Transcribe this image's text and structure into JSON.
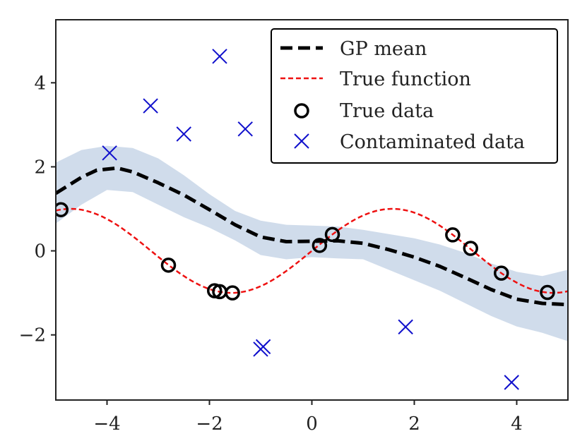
{
  "chart_data": {
    "type": "scatter",
    "title": "",
    "xlabel": "",
    "ylabel": "",
    "xlim": [
      -5,
      5
    ],
    "ylim": [
      -3.55,
      5.5
    ],
    "xticks": [
      -4,
      -2,
      0,
      2,
      4
    ],
    "yticks": [
      -2,
      0,
      2,
      4
    ],
    "xtick_labels": [
      "−4",
      "−2",
      "0",
      "2",
      "4"
    ],
    "ytick_labels": [
      "−2",
      "0",
      "2",
      "4"
    ],
    "legend": {
      "placement": "upper-right",
      "entries": [
        {
          "name": "GP mean",
          "style": "thick-dashed",
          "color": "#000000"
        },
        {
          "name": "True function",
          "style": "dashed",
          "color": "#ee1111"
        },
        {
          "name": "True data",
          "style": "circle-marker",
          "color": "#000000"
        },
        {
          "name": "Contaminated data",
          "style": "x-marker",
          "color": "#1010cc"
        }
      ]
    },
    "series": [
      {
        "name": "GP mean",
        "kind": "line",
        "color": "#000000",
        "x": [
          -5.0,
          -4.5,
          -4.2,
          -3.8,
          -3.5,
          -3.0,
          -2.5,
          -2.0,
          -1.5,
          -1.0,
          -0.5,
          0.0,
          0.5,
          1.0,
          1.5,
          2.0,
          2.5,
          3.0,
          3.5,
          4.0,
          4.5,
          5.0
        ],
        "y": [
          1.37,
          1.75,
          1.92,
          1.97,
          1.88,
          1.62,
          1.33,
          0.98,
          0.62,
          0.33,
          0.22,
          0.23,
          0.24,
          0.18,
          0.03,
          -0.15,
          -0.37,
          -0.64,
          -0.92,
          -1.15,
          -1.25,
          -1.28
        ]
      },
      {
        "name": "GP uncertainty band",
        "kind": "band",
        "color": "#b0c4de",
        "x": [
          -5.0,
          -4.5,
          -4.0,
          -3.5,
          -3.0,
          -2.5,
          -2.0,
          -1.5,
          -1.0,
          -0.5,
          0.0,
          0.5,
          1.0,
          1.5,
          2.0,
          2.5,
          3.0,
          3.5,
          4.0,
          4.5,
          5.0
        ],
        "upper": [
          2.1,
          2.4,
          2.5,
          2.45,
          2.2,
          1.8,
          1.35,
          0.95,
          0.72,
          0.62,
          0.6,
          0.58,
          0.5,
          0.4,
          0.3,
          0.15,
          -0.05,
          -0.3,
          -0.5,
          -0.6,
          -0.45
        ],
        "lower": [
          0.65,
          1.1,
          1.45,
          1.4,
          1.1,
          0.8,
          0.55,
          0.25,
          -0.1,
          -0.2,
          -0.15,
          -0.18,
          -0.2,
          -0.45,
          -0.7,
          -0.95,
          -1.25,
          -1.55,
          -1.8,
          -1.95,
          -2.15
        ]
      },
      {
        "name": "True function",
        "kind": "line",
        "color": "#ee1111",
        "function": "sin(x)",
        "x_range": [
          -5,
          5
        ]
      },
      {
        "name": "True data",
        "kind": "scatter",
        "marker": "circle",
        "color": "#000000",
        "x": [
          -4.9,
          -2.8,
          -1.9,
          -1.8,
          -1.55,
          0.15,
          0.4,
          2.75,
          3.1,
          3.7,
          4.6
        ],
        "y": [
          0.98,
          -0.34,
          -0.95,
          -0.97,
          -1.0,
          0.13,
          0.39,
          0.38,
          0.06,
          -0.53,
          -0.99
        ]
      },
      {
        "name": "Contaminated data",
        "kind": "scatter",
        "marker": "x",
        "color": "#1010cc",
        "x": [
          -3.95,
          -3.15,
          -2.5,
          -1.8,
          -1.3,
          -1.0,
          -0.95,
          1.83,
          3.9
        ],
        "y": [
          2.33,
          3.45,
          2.78,
          4.63,
          2.9,
          -2.34,
          -2.28,
          -1.81,
          -3.13
        ]
      }
    ]
  }
}
